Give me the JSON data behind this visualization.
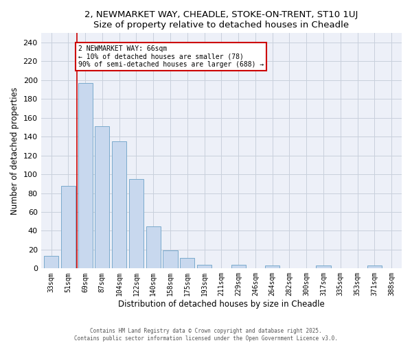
{
  "title": "2, NEWMARKET WAY, CHEADLE, STOKE-ON-TRENT, ST10 1UJ",
  "subtitle": "Size of property relative to detached houses in Cheadle",
  "xlabel": "Distribution of detached houses by size in Cheadle",
  "ylabel": "Number of detached properties",
  "bar_color": "#c8d8ee",
  "bar_edge_color": "#7aaacc",
  "categories": [
    "33sqm",
    "51sqm",
    "69sqm",
    "87sqm",
    "104sqm",
    "122sqm",
    "140sqm",
    "158sqm",
    "175sqm",
    "193sqm",
    "211sqm",
    "229sqm",
    "246sqm",
    "264sqm",
    "282sqm",
    "300sqm",
    "317sqm",
    "335sqm",
    "353sqm",
    "371sqm",
    "388sqm"
  ],
  "values": [
    13,
    88,
    197,
    151,
    135,
    95,
    45,
    19,
    11,
    4,
    0,
    4,
    0,
    3,
    0,
    0,
    3,
    0,
    0,
    3,
    0
  ],
  "ylim": [
    0,
    250
  ],
  "yticks": [
    0,
    20,
    40,
    60,
    80,
    100,
    120,
    140,
    160,
    180,
    200,
    220,
    240
  ],
  "vline_x": 1.5,
  "vline_color": "#cc0000",
  "annotation_line1": "2 NEWMARKET WAY: 66sqm",
  "annotation_line2": "← 10% of detached houses are smaller (78)",
  "annotation_line3": "90% of semi-detached houses are larger (688) →",
  "annotation_box_color": "#ffffff",
  "annotation_box_edge": "#cc0000",
  "grid_color": "#c8d0dc",
  "plot_bg_color": "#edf0f8",
  "outer_bg_color": "#ffffff",
  "footer1": "Contains HM Land Registry data © Crown copyright and database right 2025.",
  "footer2": "Contains public sector information licensed under the Open Government Licence v3.0."
}
